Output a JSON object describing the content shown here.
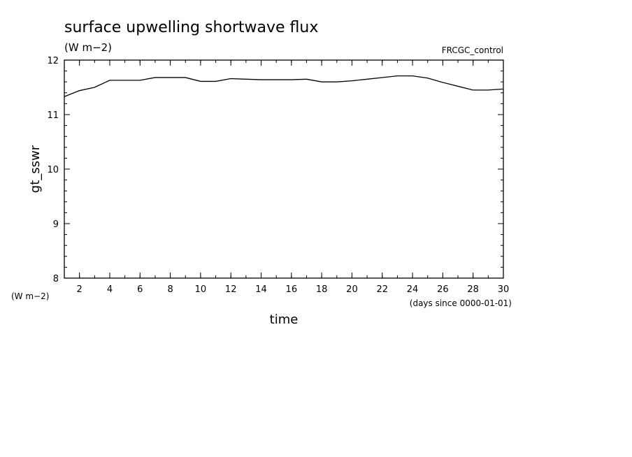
{
  "chart_data": {
    "type": "line",
    "title": "surface upwelling shortwave flux",
    "units": "(W m−2)",
    "run_label": "FRCGC_control",
    "ylabel": "gt_sswr",
    "y_units_label": "(W m−2)",
    "xlabel": "time",
    "x_units_label": "(days since 0000-01-01)",
    "xlim": [
      1,
      30
    ],
    "ylim": [
      8,
      12
    ],
    "x_ticks": [
      2,
      4,
      6,
      8,
      10,
      12,
      14,
      16,
      18,
      20,
      22,
      24,
      26,
      28,
      30
    ],
    "y_ticks": [
      8,
      9,
      10,
      11,
      12
    ],
    "x_minor_step": 1,
    "y_minor_step": 0.2,
    "grid": false,
    "series": [
      {
        "x": [
          1,
          2,
          3,
          4,
          5,
          6,
          7,
          8,
          9,
          10,
          11,
          12,
          13,
          14,
          15,
          16,
          17,
          18,
          19,
          20,
          21,
          22,
          23,
          24,
          25,
          26,
          27,
          28,
          29,
          30
        ],
        "values": [
          11.33,
          11.44,
          11.5,
          11.63,
          11.63,
          11.63,
          11.68,
          11.68,
          11.68,
          11.61,
          11.61,
          11.66,
          11.65,
          11.64,
          11.64,
          11.64,
          11.65,
          11.6,
          11.6,
          11.62,
          11.65,
          11.68,
          11.71,
          11.71,
          11.67,
          11.59,
          11.52,
          11.45,
          11.45,
          11.47
        ]
      }
    ]
  }
}
